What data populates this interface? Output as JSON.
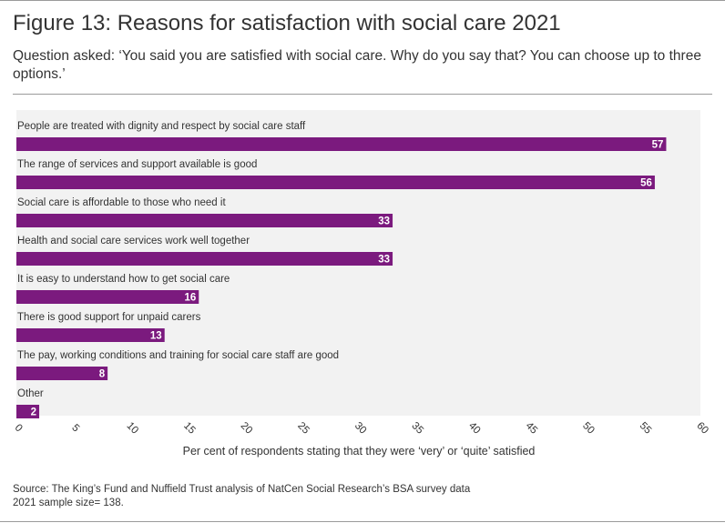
{
  "figure": {
    "title": "Figure 13: Reasons for satisfaction with social care 2021",
    "subtitle": "Question asked: ‘You said you are satisfied with social care. Why do you say that? You can choose up to three options.’",
    "source_line1": "Source: The King’s Fund and Nuffield Trust analysis of NatCen Social Research’s BSA survey data",
    "source_line2": "2021 sample size= 138."
  },
  "chart_data": {
    "type": "bar",
    "orientation": "horizontal",
    "categories": [
      "People are treated with dignity and respect by social care staff",
      "The range of services and support available is good",
      "Social care is affordable to those who need it",
      "Health and social care services work well together",
      "It is easy to understand how to get social care",
      "There is good support for unpaid carers",
      "The pay, working conditions and training for social care staff are good",
      "Other"
    ],
    "values": [
      57,
      56,
      33,
      33,
      16,
      13,
      8,
      2
    ],
    "xlabel": "Per cent of respondents stating that they were ‘very’ or ‘quite’ satisfied",
    "ylabel": "",
    "xlim": [
      0,
      60
    ],
    "xticks": [
      0,
      5,
      10,
      15,
      20,
      25,
      30,
      35,
      40,
      45,
      50,
      55,
      60
    ],
    "colors": {
      "bar": "#7b1a7e",
      "plot_background": "#f2f2f2",
      "label_text": "#ffffff"
    },
    "data_labels": true
  }
}
